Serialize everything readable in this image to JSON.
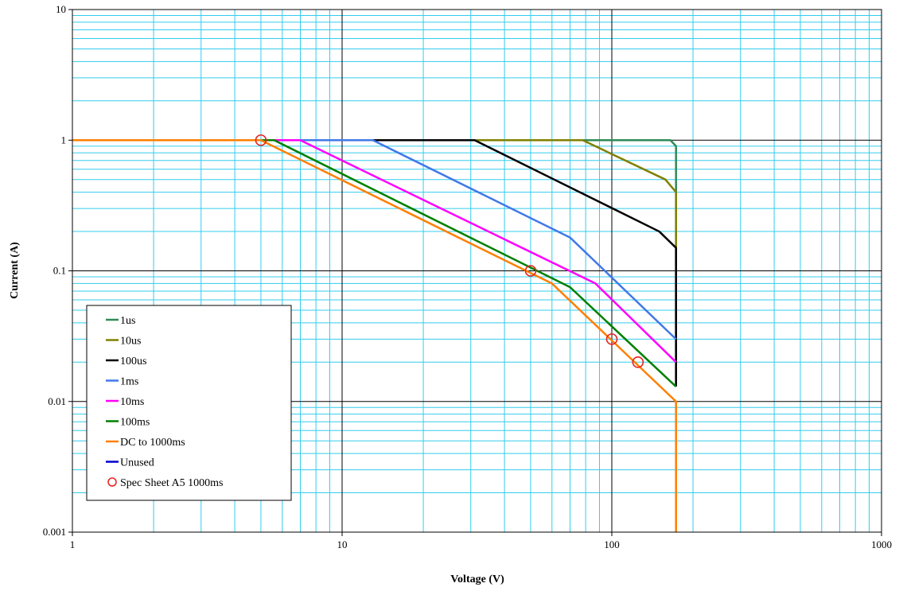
{
  "chart_data": {
    "type": "line",
    "x_scale": "log",
    "y_scale": "log",
    "xlim": [
      1,
      1000
    ],
    "ylim": [
      0.001,
      10
    ],
    "xlabel": "Voltage (V)",
    "ylabel": "Current (A)",
    "x_ticks": [
      1,
      10,
      100,
      1000
    ],
    "x_tick_labels": [
      "1",
      "10",
      "100",
      "1000"
    ],
    "y_ticks": [
      0.001,
      0.01,
      0.1,
      1,
      10
    ],
    "y_tick_labels": [
      "0.001",
      "0.01",
      "0.1",
      "1",
      "10"
    ],
    "grid": true,
    "minor_grid": true,
    "legend_position": "lower-left",
    "colors": {
      "major_grid": "#000000",
      "minor_grid": "#33ccee",
      "marker": "#e8201e"
    },
    "series": [
      {
        "name": "1us",
        "color": "#2e8b57",
        "x": [
          1,
          165,
          173,
          173
        ],
        "y": [
          1,
          1,
          0.9,
          0.013
        ]
      },
      {
        "name": "10us",
        "color": "#808000",
        "x": [
          1,
          78,
          158,
          173,
          173
        ],
        "y": [
          1,
          1,
          0.5,
          0.4,
          0.013
        ]
      },
      {
        "name": "100us",
        "color": "#000000",
        "x": [
          1,
          31,
          150,
          173,
          173
        ],
        "y": [
          1,
          1,
          0.2,
          0.15,
          0.013
        ]
      },
      {
        "name": "1ms",
        "color": "#4178e8",
        "x": [
          1,
          13,
          70,
          173
        ],
        "y": [
          1,
          1,
          0.18,
          0.03
        ]
      },
      {
        "name": "10ms",
        "color": "#ff00ff",
        "x": [
          1,
          7,
          87,
          173
        ],
        "y": [
          1,
          1,
          0.08,
          0.02
        ]
      },
      {
        "name": "100ms",
        "color": "#008000",
        "x": [
          1,
          5.6,
          70,
          173
        ],
        "y": [
          1,
          1,
          0.075,
          0.013
        ]
      },
      {
        "name": "DC to 1000ms",
        "color": "#ff7f00",
        "x": [
          1,
          5,
          60,
          173,
          173
        ],
        "y": [
          1,
          1,
          0.08,
          0.01,
          0.001
        ]
      },
      {
        "name": "Unused",
        "color": "#0000cc",
        "x": [],
        "y": []
      }
    ],
    "markers": {
      "name": "Spec Sheet A5 1000ms",
      "x": [
        5,
        50,
        100,
        125
      ],
      "y": [
        1,
        0.1,
        0.03,
        0.02
      ]
    }
  }
}
